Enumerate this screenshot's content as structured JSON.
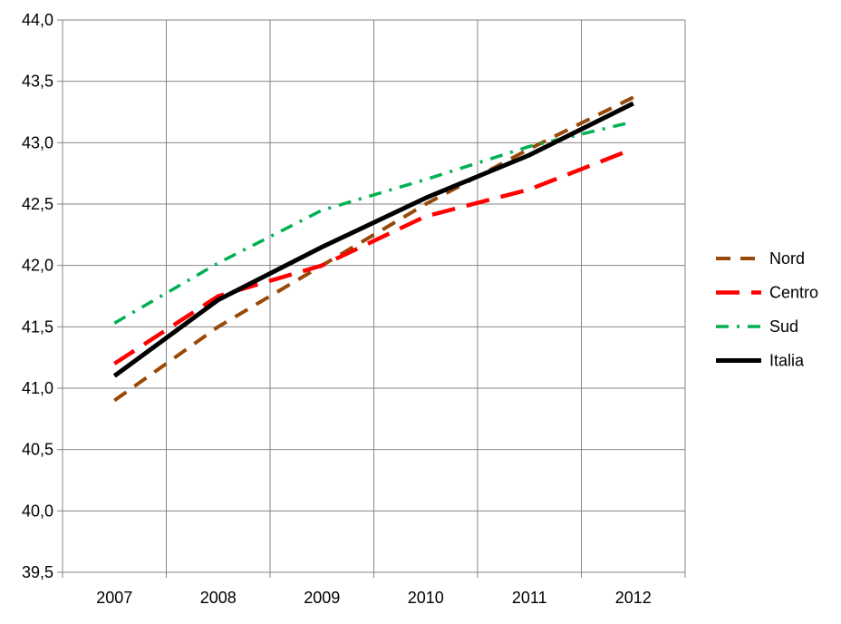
{
  "chart_data": {
    "type": "line",
    "title": "",
    "xlabel": "",
    "ylabel": "",
    "categories": [
      "2007",
      "2008",
      "2009",
      "2010",
      "2011",
      "2012"
    ],
    "ylim": [
      39.5,
      44.0
    ],
    "y_ticks": [
      39.5,
      40.0,
      40.5,
      41.0,
      41.5,
      42.0,
      42.5,
      43.0,
      43.5,
      44.0
    ],
    "y_tick_labels": [
      "39,5",
      "40,0",
      "40,5",
      "41,0",
      "41,5",
      "42,0",
      "42,5",
      "43,0",
      "43,5",
      "44,0"
    ],
    "grid": true,
    "legend_position": "right",
    "series": [
      {
        "name": "Nord",
        "values": [
          40.9,
          41.5,
          42.0,
          42.5,
          42.95,
          43.37
        ],
        "color": "#984807",
        "dash": "dashed"
      },
      {
        "name": "Centro",
        "values": [
          41.2,
          41.75,
          42.0,
          42.4,
          42.62,
          42.95
        ],
        "color": "#ff0000",
        "dash": "long-dashed"
      },
      {
        "name": "Sud",
        "values": [
          41.53,
          42.02,
          42.45,
          42.7,
          42.97,
          43.17
        ],
        "color": "#00b050",
        "dash": "dash-dot"
      },
      {
        "name": "Italia",
        "values": [
          41.1,
          41.72,
          42.15,
          42.55,
          42.9,
          43.32
        ],
        "color": "#000000",
        "dash": "solid"
      }
    ]
  }
}
